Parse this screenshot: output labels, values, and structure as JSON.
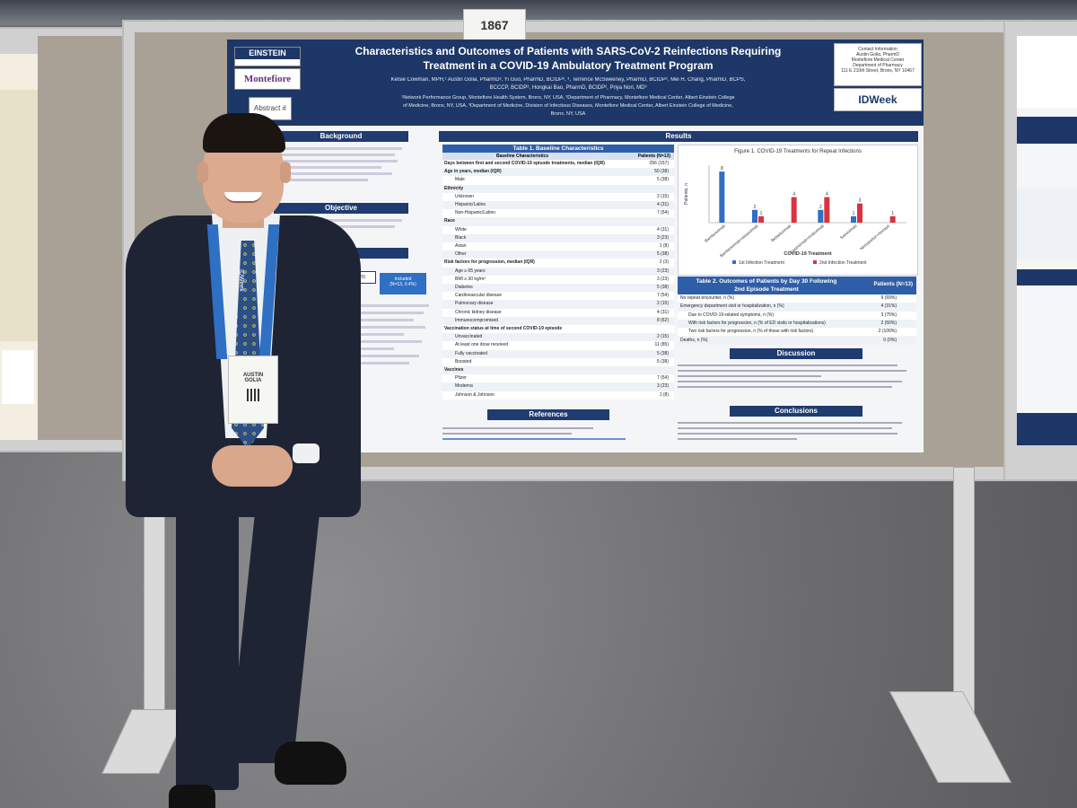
{
  "booth": {
    "number": "1867"
  },
  "poster": {
    "title_line1": "Characteristics and Outcomes of Patients with SARS-CoV-2 Reinfections Requiring",
    "title_line2": "Treatment in a COVID-19 Ambulatory Treatment Program",
    "authors_line1": "Kelsie Cowman, MPH,¹ Austin Golia, PharmD², Yi Guo, PharmD, BCIDP², ³, Terrence McSweeney, PharmD, BCIDP², Mei H. Chang, PharmD, BCPS,",
    "authors_line2": "BCCCP, BCIDP², Hongkai Bao, PharmD, BCIDP², Priya Nori, MD³",
    "affil_line1": "¹Network Performance Group, Montefiore Health System, Bronx, NY, USA, ²Department of Pharmacy, Montefiore Medical Center, Albert Einstein College",
    "affil_line2": "of Medicine, Bronx, NY, USA, ³Department of Medicine, Division of Infectious Diseases, Montefiore Medical Center, Albert Einstein College of Medicine,",
    "affil_line3": "Bronx, NY, USA",
    "logo_einstein": "EINSTEIN",
    "logo_montefiore": "Montefiore",
    "abstract_label": "Abstract #",
    "contact_title": "Contact Information",
    "contact_name": "Austin Golia, PharmD",
    "contact_org": "Montefiore Medical Center",
    "contact_dept": "Department of Pharmacy",
    "contact_addr": "111 E 210th Street, Bronx, NY 10467",
    "logo_idweek": "IDWeek",
    "sections": {
      "background": "Background",
      "objective": "Objective",
      "methods": "Methods",
      "results": "Results",
      "discussion": "Discussion",
      "conclusions": "Conclusions",
      "references": "References"
    },
    "table1_title": "Table 1. Baseline Characteristics",
    "table1_col1": "Baseline Characteristics",
    "table1_col2": "Patients (N=13)",
    "table1_rows": [
      [
        "Days between first and second COVID-19 episode treatments, median (IQR)",
        "256 (157)"
      ],
      [
        "Age in years, median (IQR)",
        "50 (38)"
      ],
      [
        "Male",
        "5 (38)"
      ],
      [
        "Ethnicity",
        ""
      ],
      [
        "Unknown",
        "2 (15)"
      ],
      [
        "Hispanic/Latino",
        "4 (31)"
      ],
      [
        "Non-Hispanic/Latino",
        "7 (54)"
      ],
      [
        "Race",
        ""
      ],
      [
        "White",
        "4 (31)"
      ],
      [
        "Black",
        "3 (23)"
      ],
      [
        "Asian",
        "1 (8)"
      ],
      [
        "Other",
        "5 (38)"
      ],
      [
        "Risk factors for progression, median (IQR)",
        "2 (3)"
      ],
      [
        "Age ≥ 65 years",
        "3 (23)"
      ],
      [
        "BMI ≥ 30 kg/m²",
        "3 (23)"
      ],
      [
        "Diabetes",
        "5 (38)"
      ],
      [
        "Cardiovascular disease",
        "7 (54)"
      ],
      [
        "Pulmonary disease",
        "2 (15)"
      ],
      [
        "Chronic kidney disease",
        "4 (31)"
      ],
      [
        "Immunocompromised",
        "8 (62)"
      ],
      [
        "Vaccination status at time of second COVID-19 episode",
        ""
      ],
      [
        "Unvaccinated",
        "2 (15)"
      ],
      [
        "At least one dose received",
        "11 (85)"
      ],
      [
        "Fully vaccinated",
        "5 (38)"
      ],
      [
        "Boosted",
        "5 (38)"
      ],
      [
        "Vaccines",
        ""
      ],
      [
        "Pfizer",
        "7 (54)"
      ],
      [
        "Moderna",
        "3 (23)"
      ],
      [
        "Johnson & Johnson",
        "1 (8)"
      ]
    ],
    "figure1_title": "Figure 1. COVID-19 Treatments for Repeat Infections",
    "figure1_xlabel": "COVID-19 Treatment",
    "figure1_legend1": "1st Infection Treatment",
    "figure1_legend2": "2nd Infection Treatment",
    "table2_title": "Table 2. Outcomes of Patients by Day 30 Following",
    "table2_title2": "2nd Episode Treatment",
    "table2_col2": "Patients (N=13)",
    "table2_rows": [
      [
        "No repeat encounter, n (%)",
        "9 (69%)"
      ],
      [
        "Emergency department visit or hospitalization, n (%)",
        "4 (31%)"
      ],
      [
        "Due to COVID-19-related symptoms, n (%)",
        "3 (75%)"
      ],
      [
        "With risk factors for progression, n (% of ED visits or hospitalizations)",
        "2 (50%)"
      ],
      [
        "Two risk factors for progression, n (% of those with risk factors)",
        "2 (100%)"
      ],
      [
        "Deaths, n (%)",
        "0 (0%)"
      ]
    ],
    "methods_n1": "(N=3,029)",
    "methods_included": "Included",
    "methods_n2": "(N=13, 0.4%)"
  },
  "badge": {
    "name": "AUSTIN",
    "name2": "GOLIA"
  },
  "lanyard_text": "IDWeek",
  "colors": {
    "poster_header": "#1d3768",
    "bar_blue": "#2f6fc4",
    "bar_red": "#d6343f",
    "suit": "#1e2433",
    "carpet": "#6d6d70"
  },
  "chart_data": {
    "type": "bar",
    "title": "Figure 1. COVID-19 Treatments for Repeat Infections",
    "xlabel": "COVID-19 Treatment",
    "ylabel": "Patients, n",
    "categories": [
      "Bamlanivimab",
      "Bamlanivimab+etesevimab",
      "Bebtelovimab",
      "Casirivimab+imdevimab",
      "Sotrovimab",
      "Nirmatrelvir+ritonavir"
    ],
    "series": [
      {
        "name": "1st Infection Treatment",
        "values": [
          8,
          2,
          0,
          2,
          1,
          0
        ]
      },
      {
        "name": "2nd Infection Treatment",
        "values": [
          0,
          1,
          4,
          4,
          3,
          1
        ]
      }
    ],
    "ylim": [
      0,
      9
    ]
  }
}
